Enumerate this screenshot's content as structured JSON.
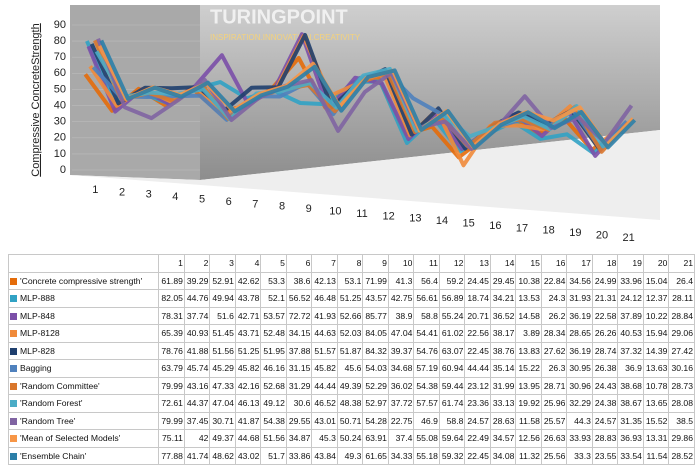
{
  "chart_data": {
    "type": "line",
    "y_label": "Compressive ConcreteStrength",
    "watermark": "TURINGPOINT",
    "tagline": "INSPIRATION.INNOVATION.CREATIVITY",
    "categories": [
      "1",
      "2",
      "3",
      "4",
      "5",
      "6",
      "7",
      "8",
      "9",
      "10",
      "11",
      "12",
      "13",
      "14",
      "15",
      "16",
      "17",
      "18",
      "19",
      "20",
      "21"
    ],
    "ylim": [
      0,
      90
    ],
    "yticks": [
      0,
      10,
      20,
      30,
      40,
      50,
      60,
      70,
      80,
      90
    ],
    "series": [
      {
        "name": "'Concrete compressive strength'",
        "color": "#e46c0a",
        "values": [
          61.89,
          39.29,
          52.91,
          42.62,
          53.3,
          38.6,
          42.13,
          53.1,
          71.99,
          41.3,
          56.4,
          59.2,
          24.45,
          29.45,
          10.38,
          22.84,
          34.56,
          24.99,
          33.96,
          15.04,
          26.4
        ]
      },
      {
        "name": "MLP-888",
        "color": "#31a2c4",
        "values": [
          82.05,
          44.76,
          49.94,
          43.78,
          52.1,
          56.52,
          46.48,
          51.25,
          43.57,
          42.75,
          56.61,
          56.89,
          18.74,
          34.21,
          13.53,
          24.3,
          31.93,
          21.31,
          24.12,
          12.37,
          28.11
        ]
      },
      {
        "name": "MLP-848",
        "color": "#7b4fa8",
        "values": [
          78.31,
          37.74,
          51.6,
          42.71,
          53.57,
          72.72,
          41.93,
          52.66,
          85.77,
          38.9,
          58.8,
          55.24,
          20.71,
          36.52,
          14.58,
          26.2,
          36.19,
          22.58,
          37.89,
          10.22,
          28.84
        ]
      },
      {
        "name": "MLP-8128",
        "color": "#f08a3a",
        "values": [
          65.39,
          40.93,
          51.45,
          43.71,
          52.48,
          34.15,
          44.63,
          52.03,
          84.05,
          47.04,
          54.41,
          61.02,
          22.56,
          38.17,
          3.89,
          28.34,
          28.65,
          26.26,
          40.53,
          15.94,
          29.06
        ]
      },
      {
        "name": "MLP-828",
        "color": "#1f3f6e",
        "values": [
          78.76,
          41.88,
          51.56,
          51.25,
          51.95,
          37.88,
          51.57,
          51.87,
          84.32,
          39.37,
          54.76,
          63.07,
          22.45,
          38.76,
          13.83,
          27.62,
          36.19,
          28.74,
          37.32,
          14.39,
          27.42
        ]
      },
      {
        "name": "Bagging",
        "color": "#4f81bd",
        "values": [
          63.79,
          45.74,
          45.29,
          45.82,
          46.16,
          31.15,
          45.82,
          45.6,
          54.03,
          34.68,
          57.19,
          60.94,
          44.44,
          35.14,
          15.22,
          26.3,
          30.95,
          26.38,
          36.9,
          13.63,
          30.16
        ]
      },
      {
        "name": "'Random Committee'",
        "color": "#d9772c",
        "values": [
          79.99,
          43.16,
          47.33,
          42.16,
          52.68,
          31.29,
          44.44,
          49.39,
          52.29,
          36.02,
          54.38,
          59.44,
          23.12,
          31.99,
          13.95,
          28.71,
          30.96,
          24.43,
          38.68,
          10.78,
          28.73
        ]
      },
      {
        "name": "'Random Forest'",
        "color": "#4bacc6",
        "values": [
          72.61,
          44.37,
          47.04,
          46.13,
          49.12,
          30.6,
          46.52,
          48.38,
          52.97,
          37.72,
          57.57,
          61.74,
          23.36,
          33.13,
          19.92,
          25.96,
          32.29,
          24.38,
          38.67,
          13.65,
          28.08
        ]
      },
      {
        "name": "'Random Tree'",
        "color": "#8064a2",
        "values": [
          79.99,
          37.45,
          30.71,
          41.87,
          54.38,
          29.55,
          43.01,
          50.71,
          54.28,
          22.75,
          46.9,
          58.8,
          24.57,
          28.63,
          11.58,
          25.57,
          44.3,
          24.57,
          31.35,
          15.52,
          38.5
        ]
      },
      {
        "name": "'Mean of Selected Models'",
        "color": "#f79646",
        "values": [
          75.11,
          42,
          49.37,
          44.68,
          51.56,
          34.87,
          45.3,
          50.24,
          63.91,
          37.4,
          55.08,
          59.64,
          22.49,
          34.57,
          12.56,
          26.63,
          33.93,
          28.83,
          36.93,
          13.31,
          29.86
        ]
      },
      {
        "name": "'Ensemble Chain'",
        "color": "#2c7fa8",
        "values": [
          77.88,
          41.74,
          48.62,
          43.02,
          51.7,
          33.86,
          43.84,
          49.3,
          61.65,
          34.33,
          55.18,
          59.32,
          22.45,
          34.08,
          11.32,
          25.56,
          33.3,
          23.55,
          33.54,
          11.54,
          28.52
        ]
      }
    ]
  }
}
